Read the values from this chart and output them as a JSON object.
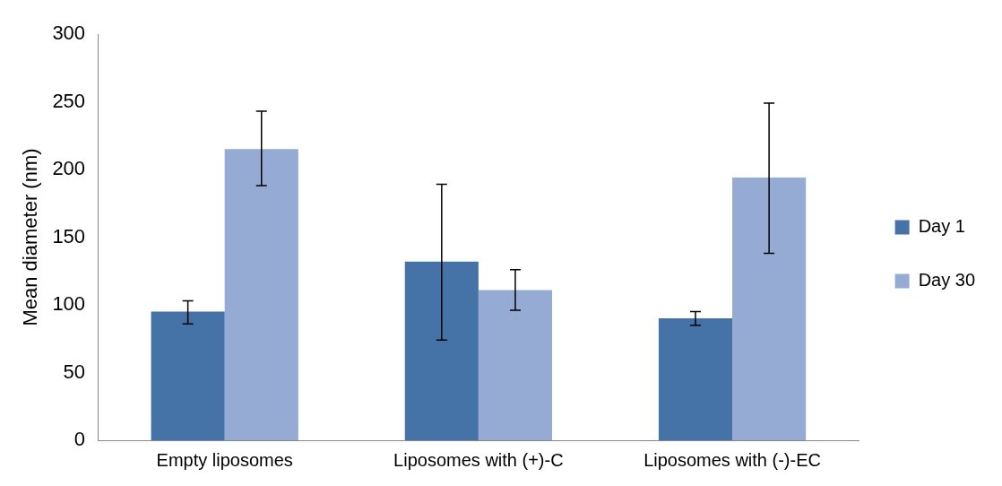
{
  "chart_data": {
    "type": "bar",
    "ylabel": "Mean diameter (nm)",
    "categories": [
      "Empty liposomes",
      "Liposomes with (+)-C",
      "Liposomes with (-)-EC"
    ],
    "series": [
      {
        "name": "Day 1",
        "color": "#4573a7",
        "values": [
          95,
          132,
          90
        ],
        "errors": [
          [
            86,
            103
          ],
          [
            74,
            189
          ],
          [
            85,
            95
          ]
        ]
      },
      {
        "name": "Day 30",
        "color": "#95abd3",
        "values": [
          215,
          111,
          194
        ],
        "errors": [
          [
            188,
            243
          ],
          [
            96,
            126
          ],
          [
            138,
            249
          ]
        ]
      }
    ],
    "ylim": [
      0,
      300
    ],
    "yticks": [
      0,
      50,
      100,
      150,
      200,
      250,
      300
    ],
    "grid": false,
    "legend": "right"
  }
}
